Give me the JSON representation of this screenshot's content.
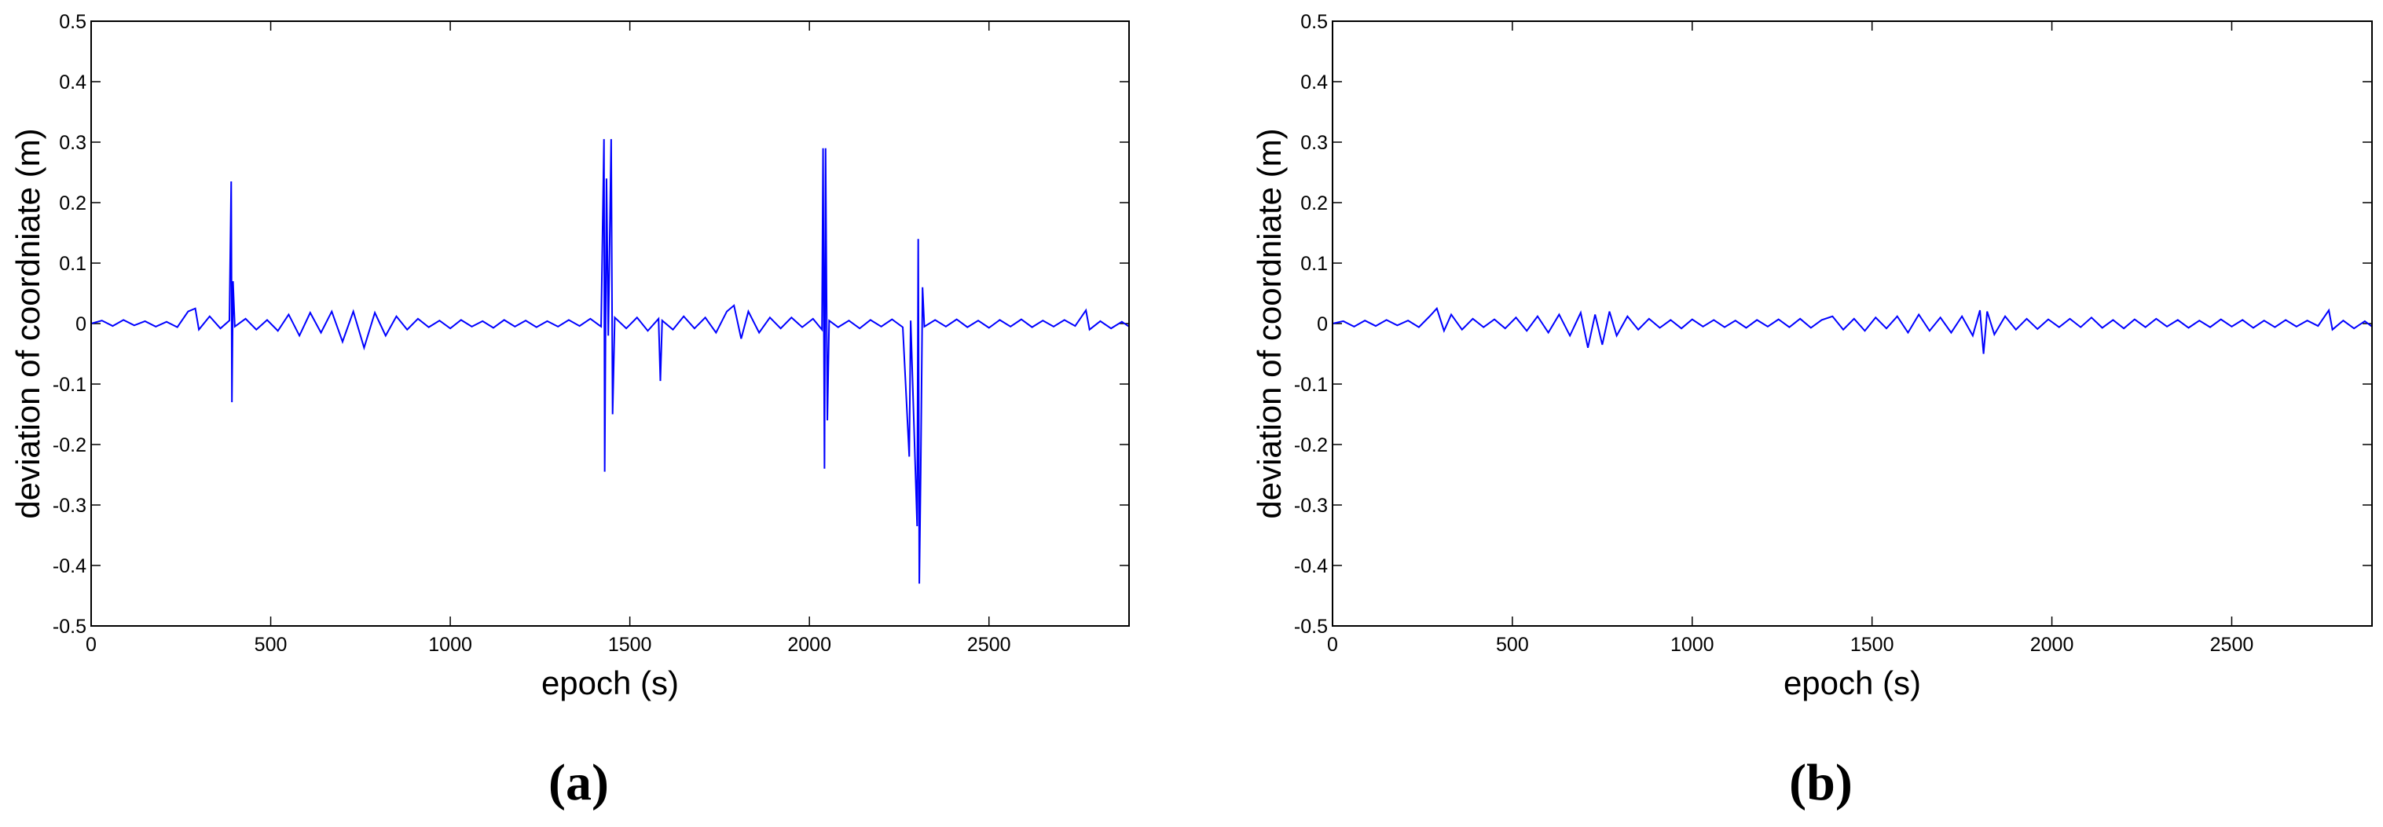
{
  "chart_data": [
    {
      "type": "line",
      "panel_label": "(a)",
      "xlabel": "epoch (s)",
      "ylabel": "deviation of coordniate (m)",
      "color": "#0000ff",
      "xlim": [
        0,
        2890
      ],
      "ylim": [
        -0.5,
        0.5
      ],
      "xticks": [
        0,
        500,
        1000,
        1500,
        2000,
        2500
      ],
      "yticks": [
        -0.5,
        -0.4,
        -0.3,
        -0.2,
        -0.1,
        0,
        0.1,
        0.2,
        0.3,
        0.4,
        0.5
      ],
      "x": [
        0,
        30,
        60,
        90,
        120,
        150,
        180,
        210,
        240,
        270,
        290,
        300,
        330,
        360,
        385,
        390,
        392,
        395,
        400,
        430,
        460,
        490,
        520,
        550,
        580,
        610,
        640,
        670,
        700,
        730,
        760,
        790,
        820,
        850,
        880,
        910,
        940,
        970,
        1000,
        1030,
        1060,
        1090,
        1120,
        1150,
        1180,
        1210,
        1240,
        1270,
        1300,
        1330,
        1360,
        1390,
        1420,
        1428,
        1430,
        1435,
        1440,
        1448,
        1452,
        1458,
        1490,
        1520,
        1550,
        1580,
        1585,
        1590,
        1620,
        1650,
        1680,
        1710,
        1740,
        1770,
        1790,
        1810,
        1830,
        1860,
        1890,
        1920,
        1950,
        1980,
        2010,
        2035,
        2038,
        2042,
        2045,
        2050,
        2055,
        2080,
        2110,
        2140,
        2170,
        2200,
        2230,
        2260,
        2278,
        2282,
        2300,
        2303,
        2306,
        2310,
        2315,
        2320,
        2350,
        2380,
        2410,
        2440,
        2470,
        2500,
        2530,
        2560,
        2590,
        2620,
        2650,
        2680,
        2710,
        2740,
        2770,
        2780,
        2810,
        2840,
        2870,
        2890
      ],
      "values": [
        0,
        0.005,
        -0.004,
        0.006,
        -0.003,
        0.004,
        -0.005,
        0.003,
        -0.006,
        0.02,
        0.025,
        -0.01,
        0.012,
        -0.008,
        0.005,
        0.235,
        -0.13,
        0.07,
        -0.005,
        0.008,
        -0.01,
        0.006,
        -0.012,
        0.015,
        -0.02,
        0.018,
        -0.015,
        0.02,
        -0.03,
        0.02,
        -0.04,
        0.018,
        -0.02,
        0.012,
        -0.01,
        0.008,
        -0.006,
        0.005,
        -0.008,
        0.006,
        -0.005,
        0.004,
        -0.007,
        0.006,
        -0.005,
        0.005,
        -0.006,
        0.004,
        -0.005,
        0.006,
        -0.004,
        0.008,
        -0.005,
        0.305,
        -0.245,
        0.24,
        -0.02,
        0.305,
        -0.15,
        0.01,
        -0.008,
        0.01,
        -0.012,
        0.008,
        -0.095,
        0.005,
        -0.01,
        0.012,
        -0.008,
        0.01,
        -0.015,
        0.02,
        0.03,
        -0.025,
        0.02,
        -0.015,
        0.01,
        -0.008,
        0.01,
        -0.006,
        0.008,
        -0.01,
        0.29,
        -0.24,
        0.29,
        -0.16,
        0.005,
        -0.006,
        0.005,
        -0.008,
        0.006,
        -0.005,
        0.007,
        -0.006,
        -0.22,
        0.005,
        -0.335,
        0.14,
        -0.43,
        -0.24,
        0.06,
        -0.005,
        0.006,
        -0.005,
        0.007,
        -0.006,
        0.005,
        -0.007,
        0.006,
        -0.005,
        0.007,
        -0.006,
        0.005,
        -0.005,
        0.006,
        -0.004,
        0.022,
        -0.01,
        0.004,
        -0.008,
        0.003,
        -0.005
      ]
    },
    {
      "type": "line",
      "panel_label": "(b)",
      "xlabel": "epoch (s)",
      "ylabel": "deviation of coordniate (m)",
      "color": "#0000ff",
      "xlim": [
        0,
        2890
      ],
      "ylim": [
        -0.5,
        0.5
      ],
      "xticks": [
        0,
        500,
        1000,
        1500,
        2000,
        2500
      ],
      "yticks": [
        -0.5,
        -0.4,
        -0.3,
        -0.2,
        -0.1,
        0,
        0.1,
        0.2,
        0.3,
        0.4,
        0.5
      ],
      "x": [
        0,
        30,
        60,
        90,
        120,
        150,
        180,
        210,
        240,
        270,
        290,
        310,
        330,
        360,
        390,
        420,
        450,
        480,
        510,
        540,
        570,
        600,
        630,
        660,
        690,
        710,
        730,
        750,
        770,
        790,
        820,
        850,
        880,
        910,
        940,
        970,
        1000,
        1030,
        1060,
        1090,
        1120,
        1150,
        1180,
        1210,
        1240,
        1270,
        1300,
        1330,
        1360,
        1390,
        1420,
        1450,
        1480,
        1510,
        1540,
        1570,
        1600,
        1630,
        1660,
        1690,
        1720,
        1750,
        1780,
        1800,
        1810,
        1820,
        1840,
        1870,
        1900,
        1930,
        1960,
        1990,
        2020,
        2050,
        2080,
        2110,
        2140,
        2170,
        2200,
        2230,
        2260,
        2290,
        2320,
        2350,
        2380,
        2410,
        2440,
        2470,
        2500,
        2530,
        2560,
        2590,
        2620,
        2650,
        2680,
        2710,
        2740,
        2770,
        2780,
        2810,
        2840,
        2870,
        2890
      ],
      "values": [
        0,
        0.004,
        -0.005,
        0.005,
        -0.004,
        0.006,
        -0.003,
        0.005,
        -0.006,
        0.012,
        0.025,
        -0.012,
        0.015,
        -0.01,
        0.008,
        -0.006,
        0.007,
        -0.008,
        0.01,
        -0.012,
        0.012,
        -0.015,
        0.015,
        -0.02,
        0.018,
        -0.04,
        0.015,
        -0.035,
        0.02,
        -0.02,
        0.012,
        -0.01,
        0.008,
        -0.007,
        0.006,
        -0.008,
        0.007,
        -0.005,
        0.006,
        -0.006,
        0.005,
        -0.007,
        0.006,
        -0.005,
        0.007,
        -0.006,
        0.008,
        -0.007,
        0.006,
        0.012,
        -0.01,
        0.008,
        -0.012,
        0.01,
        -0.008,
        0.012,
        -0.015,
        0.015,
        -0.012,
        0.01,
        -0.015,
        0.012,
        -0.02,
        0.022,
        -0.05,
        0.02,
        -0.018,
        0.012,
        -0.01,
        0.008,
        -0.009,
        0.007,
        -0.006,
        0.008,
        -0.006,
        0.01,
        -0.007,
        0.006,
        -0.008,
        0.007,
        -0.006,
        0.008,
        -0.005,
        0.006,
        -0.007,
        0.005,
        -0.006,
        0.007,
        -0.005,
        0.006,
        -0.007,
        0.005,
        -0.006,
        0.006,
        -0.005,
        0.005,
        -0.004,
        0.022,
        -0.01,
        0.005,
        -0.008,
        0.004,
        -0.005
      ]
    }
  ]
}
